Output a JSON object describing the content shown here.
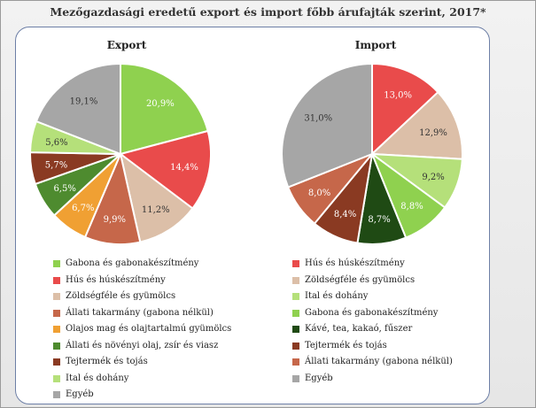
{
  "title": "Mezőgazdasági eredetű export és import főbb árufajták szerint, 2017*",
  "chart_data": [
    {
      "type": "pie",
      "title": "Export",
      "slices": [
        {
          "label": "Gabona és gabonakészítmény",
          "value": 20.9,
          "text": "20,9%",
          "color": "#8fd14f"
        },
        {
          "label": "Hús és húskészítmény",
          "value": 14.4,
          "text": "14,4%",
          "color": "#e94b4b"
        },
        {
          "label": "Zöldségféle és gyümölcs",
          "value": 11.2,
          "text": "11,2%",
          "color": "#dcbfa8"
        },
        {
          "label": "Állati takarmány (gabona nélkül)",
          "value": 9.9,
          "text": "9,9%",
          "color": "#c6674a"
        },
        {
          "label": "Olajos mag és olajtartalmú gyümölcs",
          "value": 6.7,
          "text": "6,7%",
          "color": "#f0a033"
        },
        {
          "label": "Állati és növényi olaj, zsír és viasz",
          "value": 6.5,
          "text": "6,5%",
          "color": "#4e8b2f"
        },
        {
          "label": "Tejtermék és tojás",
          "value": 5.7,
          "text": "5,7%",
          "color": "#8a3a22"
        },
        {
          "label": "Ital és dohány",
          "value": 5.6,
          "text": "5,6%",
          "color": "#b5e07a"
        },
        {
          "label": "Egyéb",
          "value": 19.1,
          "text": "19,1%",
          "color": "#a6a6a6"
        }
      ]
    },
    {
      "type": "pie",
      "title": "Import",
      "slices": [
        {
          "label": "Hús és húskészítmény",
          "value": 13.0,
          "text": "13,0%",
          "color": "#e94b4b"
        },
        {
          "label": "Zöldségféle és gyümölcs",
          "value": 12.9,
          "text": "12,9%",
          "color": "#dcbfa8"
        },
        {
          "label": "Ital és dohány",
          "value": 9.2,
          "text": "9,2%",
          "color": "#b5e07a"
        },
        {
          "label": "Gabona és gabonakészítmény",
          "value": 8.8,
          "text": "8,8%",
          "color": "#8fd14f"
        },
        {
          "label": "Kávé, tea, kakaó, fűszer",
          "value": 8.7,
          "text": "8,7%",
          "color": "#1f4a14"
        },
        {
          "label": "Tejtermék és tojás",
          "value": 8.4,
          "text": "8,4%",
          "color": "#8a3a22"
        },
        {
          "label": "Állati takarmány (gabona nélkül)",
          "value": 8.0,
          "text": "8,0%",
          "color": "#c6674a"
        },
        {
          "label": "Egyéb",
          "value": 31.0,
          "text": "31,0%",
          "color": "#a6a6a6"
        }
      ]
    }
  ]
}
